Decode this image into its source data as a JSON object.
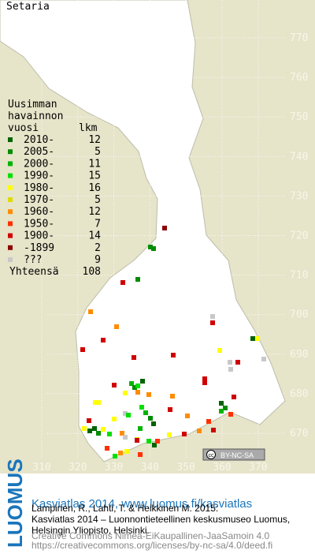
{
  "title": "Setaria",
  "legend": {
    "heading": [
      "Uusimman",
      "havainnon",
      "vuosi"
    ],
    "count_heading": "lkm",
    "entries": [
      {
        "label": "2010-",
        "count": 12,
        "color": "#006400"
      },
      {
        "label": "2005-",
        "count": 5,
        "color": "#008c00"
      },
      {
        "label": "2000-",
        "count": 11,
        "color": "#00b400"
      },
      {
        "label": "1990-",
        "count": 15,
        "color": "#00e000"
      },
      {
        "label": "1980-",
        "count": 16,
        "color": "#ffff00"
      },
      {
        "label": "1970-",
        "count": 5,
        "color": "#dcdc00"
      },
      {
        "label": "1960-",
        "count": 12,
        "color": "#ff8c00"
      },
      {
        "label": "1950-",
        "count": 7,
        "color": "#ff3000"
      },
      {
        "label": "1900-",
        "count": 14,
        "color": "#d00000"
      },
      {
        "label": "-1899",
        "count": 2,
        "color": "#8c0000"
      },
      {
        "label": "???",
        "count": 9,
        "color": "#c8c8c8"
      }
    ],
    "total_label": "Yhteensä",
    "total": 108
  },
  "grid": {
    "yticks": [
      670,
      680,
      690,
      700,
      710,
      720,
      730,
      740,
      750,
      760,
      770
    ],
    "xticks": [
      310,
      320,
      330,
      340,
      350,
      360,
      370
    ]
  },
  "license_badge": "BY-NC-SA",
  "footer": {
    "logo": "LUOMUS",
    "heading": "Kasviatlas 2014, www.luomus.fi/kasviatlas",
    "citation": [
      "Lampinen, R., Lahti, T. & Heikkinen M. 2015:",
      "Kasviatlas 2014 – Luonnontieteellinen keskusmuseo Luomus,",
      "Helsingin Yliopisto, Helsinki."
    ],
    "license": [
      "Creative Commons Nimeä-EiKaupallinen-JaaSamoin 4.0",
      "https://creativecommons.org/licenses/by-nc-sa/4.0/deed.fi"
    ]
  }
}
